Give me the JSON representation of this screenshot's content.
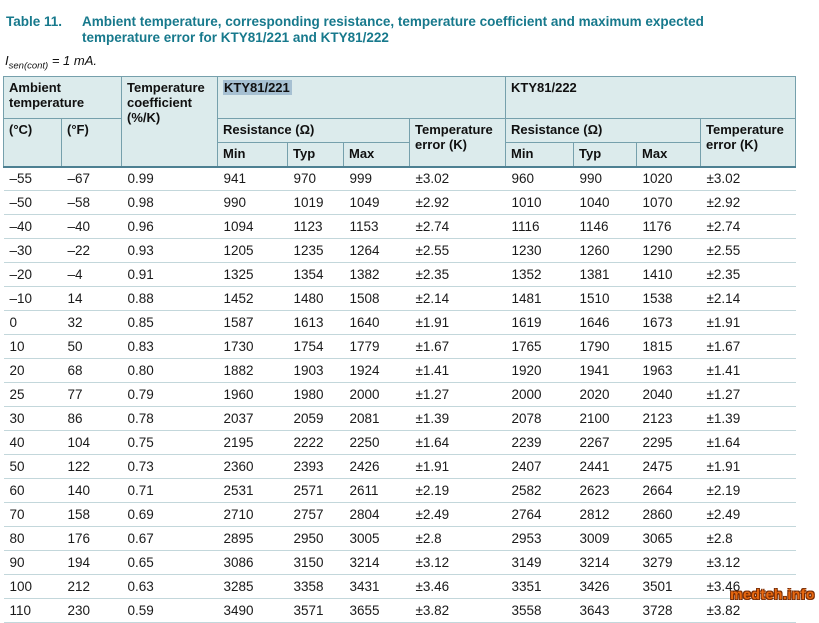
{
  "title": {
    "label": "Table 11.",
    "text": "Ambient temperature, corresponding resistance, temperature coefficient and maximum expected temperature error for KTY81/221 and KTY81/222"
  },
  "subtitle": {
    "symbol": "I",
    "subscript": "sen(cont)",
    "value": " = 1 mA."
  },
  "table": {
    "headers": {
      "ambient_temperature": "Ambient temperature",
      "temperature_coefficient": "Temperature coefficient",
      "temperature_coefficient_unit": "(%/K)",
      "celsius": "(°C)",
      "fahrenheit": "(°F)",
      "kty221": "KTY81/221",
      "kty222": "KTY81/222",
      "resistance": "Resistance (Ω)",
      "temperature_error": "Temperature error (K)",
      "min": "Min",
      "typ": "Typ",
      "max": "Max"
    },
    "rows": [
      [
        "–55",
        "–67",
        "0.99",
        "941",
        "970",
        "999",
        "±3.02",
        "960",
        "990",
        "1020",
        "±3.02"
      ],
      [
        "–50",
        "–58",
        "0.98",
        "990",
        "1019",
        "1049",
        "±2.92",
        "1010",
        "1040",
        "1070",
        "±2.92"
      ],
      [
        "–40",
        "–40",
        "0.96",
        "1094",
        "1123",
        "1153",
        "±2.74",
        "1116",
        "1146",
        "1176",
        "±2.74"
      ],
      [
        "–30",
        "–22",
        "0.93",
        "1205",
        "1235",
        "1264",
        "±2.55",
        "1230",
        "1260",
        "1290",
        "±2.55"
      ],
      [
        "–20",
        "–4",
        "0.91",
        "1325",
        "1354",
        "1382",
        "±2.35",
        "1352",
        "1381",
        "1410",
        "±2.35"
      ],
      [
        "–10",
        "14",
        "0.88",
        "1452",
        "1480",
        "1508",
        "±2.14",
        "1481",
        "1510",
        "1538",
        "±2.14"
      ],
      [
        "0",
        "32",
        "0.85",
        "1587",
        "1613",
        "1640",
        "±1.91",
        "1619",
        "1646",
        "1673",
        "±1.91"
      ],
      [
        "10",
        "50",
        "0.83",
        "1730",
        "1754",
        "1779",
        "±1.67",
        "1765",
        "1790",
        "1815",
        "±1.67"
      ],
      [
        "20",
        "68",
        "0.80",
        "1882",
        "1903",
        "1924",
        "±1.41",
        "1920",
        "1941",
        "1963",
        "±1.41"
      ],
      [
        "25",
        "77",
        "0.79",
        "1960",
        "1980",
        "2000",
        "±1.27",
        "2000",
        "2020",
        "2040",
        "±1.27"
      ],
      [
        "30",
        "86",
        "0.78",
        "2037",
        "2059",
        "2081",
        "±1.39",
        "2078",
        "2100",
        "2123",
        "±1.39"
      ],
      [
        "40",
        "104",
        "0.75",
        "2195",
        "2222",
        "2250",
        "±1.64",
        "2239",
        "2267",
        "2295",
        "±1.64"
      ],
      [
        "50",
        "122",
        "0.73",
        "2360",
        "2393",
        "2426",
        "±1.91",
        "2407",
        "2441",
        "2475",
        "±1.91"
      ],
      [
        "60",
        "140",
        "0.71",
        "2531",
        "2571",
        "2611",
        "±2.19",
        "2582",
        "2623",
        "2664",
        "±2.19"
      ],
      [
        "70",
        "158",
        "0.69",
        "2710",
        "2757",
        "2804",
        "±2.49",
        "2764",
        "2812",
        "2860",
        "±2.49"
      ],
      [
        "80",
        "176",
        "0.67",
        "2895",
        "2950",
        "3005",
        "±2.8",
        "2953",
        "3009",
        "3065",
        "±2.8"
      ],
      [
        "90",
        "194",
        "0.65",
        "3086",
        "3150",
        "3214",
        "±3.12",
        "3149",
        "3214",
        "3279",
        "±3.12"
      ],
      [
        "100",
        "212",
        "0.63",
        "3285",
        "3358",
        "3431",
        "±3.46",
        "3351",
        "3426",
        "3501",
        "±3.46"
      ],
      [
        "110",
        "230",
        "0.59",
        "3490",
        "3571",
        "3655",
        "±3.82",
        "3558",
        "3643",
        "3728",
        "±3.82"
      ]
    ]
  },
  "watermark": {
    "text": "medteh.info"
  },
  "colors": {
    "accent_teal": "#17798c",
    "header_background": "#dcebec",
    "selection_highlight": "#a6c0d2",
    "row_separator": "#c3d7db",
    "header_border": "#76a0ac",
    "watermark_orange": "#e8680f"
  }
}
